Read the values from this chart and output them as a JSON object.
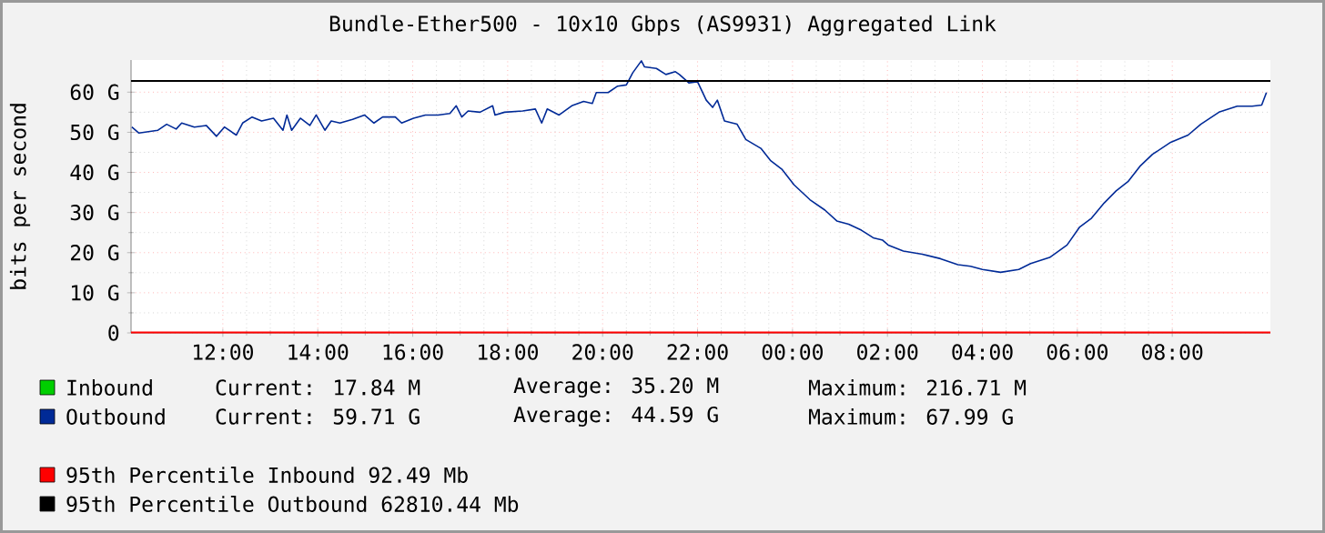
{
  "chart_data": {
    "type": "line",
    "title": "Bundle-Ether500 - 10x10 Gbps (AS9931) Aggregated Link",
    "ylabel": "bits per second",
    "xlim": [
      "2000-01-01T10:04",
      "2000-01-02T10:04"
    ],
    "ylim": [
      0,
      68
    ],
    "xticks": [
      {
        "value": "2000-01-01T12:00",
        "label": "12:00"
      },
      {
        "value": "2000-01-01T14:00",
        "label": "14:00"
      },
      {
        "value": "2000-01-01T16:00",
        "label": "16:00"
      },
      {
        "value": "2000-01-01T18:00",
        "label": "18:00"
      },
      {
        "value": "2000-01-01T20:00",
        "label": "20:00"
      },
      {
        "value": "2000-01-01T22:00",
        "label": "22:00"
      },
      {
        "value": "2000-01-02T00:00",
        "label": "00:00"
      },
      {
        "value": "2000-01-02T02:00",
        "label": "02:00"
      },
      {
        "value": "2000-01-02T04:00",
        "label": "04:00"
      },
      {
        "value": "2000-01-02T06:00",
        "label": "06:00"
      },
      {
        "value": "2000-01-02T08:00",
        "label": "08:00"
      }
    ],
    "yticks": [
      0,
      {
        "value": 10,
        "label": "10 G"
      },
      {
        "value": 20,
        "label": "20 G"
      },
      {
        "value": 30,
        "label": "30 G"
      },
      {
        "value": 40,
        "label": "40 G"
      },
      {
        "value": 50,
        "label": "50 G"
      },
      {
        "value": 60,
        "label": "60 G"
      }
    ],
    "grid": true,
    "legend": "bottom",
    "marker": "none",
    "line_style": "solid",
    "series": [
      {
        "name": "Inbound",
        "color": "#00cf00",
        "values": [
          null,
          null
        ]
      },
      {
        "name": "Outbound",
        "color": "#002a97",
        "x": [
          "2000-01-01T10:05",
          "2000-01-01T10:14",
          "2000-01-01T10:38",
          "2000-01-01T10:49",
          "2000-01-01T11:01",
          "2000-01-01T11:08",
          "2000-01-01T11:24",
          "2000-01-01T11:39",
          "2000-01-01T11:52",
          "2000-01-01T12:02",
          "2000-01-01T12:17",
          "2000-01-01T12:25",
          "2000-01-01T12:37",
          "2000-01-01T12:49",
          "2000-01-01T13:04",
          "2000-01-01T13:16",
          "2000-01-01T13:21",
          "2000-01-01T13:27",
          "2000-01-01T13:38",
          "2000-01-01T13:50",
          "2000-01-01T13:58",
          "2000-01-01T14:09",
          "2000-01-01T14:17",
          "2000-01-01T14:28",
          "2000-01-01T14:44",
          "2000-01-01T14:59",
          "2000-01-01T15:11",
          "2000-01-01T15:22",
          "2000-01-01T15:38",
          "2000-01-01T15:46",
          "2000-01-01T16:01",
          "2000-01-01T16:16",
          "2000-01-01T16:32",
          "2000-01-01T16:47",
          "2000-01-01T16:55",
          "2000-01-01T17:02",
          "2000-01-01T17:10",
          "2000-01-01T17:25",
          "2000-01-01T17:41",
          "2000-01-01T17:44",
          "2000-01-01T17:56",
          "2000-01-01T18:19",
          "2000-01-01T18:35",
          "2000-01-01T18:43",
          "2000-01-01T18:50",
          "2000-01-01T19:05",
          "2000-01-01T19:21",
          "2000-01-01T19:36",
          "2000-01-01T19:47",
          "2000-01-01T19:52",
          "2000-01-01T20:07",
          "2000-01-01T20:19",
          "2000-01-01T20:30",
          "2000-01-01T20:38",
          "2000-01-01T20:49",
          "2000-01-01T20:53",
          "2000-01-01T21:08",
          "2000-01-01T21:20",
          "2000-01-01T21:32",
          "2000-01-01T21:37",
          "2000-01-01T21:49",
          "2000-01-01T22:00",
          "2000-01-01T22:11",
          "2000-01-01T22:19",
          "2000-01-01T22:25",
          "2000-01-01T22:34",
          "2000-01-01T22:50",
          "2000-01-01T23:01",
          "2000-01-01T23:20",
          "2000-01-01T23:32",
          "2000-01-01T23:47",
          "2000-01-02T00:02",
          "2000-01-02T00:22",
          "2000-01-02T00:41",
          "2000-01-02T00:56",
          "2000-01-02T01:11",
          "2000-01-02T01:27",
          "2000-01-02T01:42",
          "2000-01-02T01:54",
          "2000-01-02T02:01",
          "2000-01-02T02:20",
          "2000-01-02T02:44",
          "2000-01-02T03:07",
          "2000-01-02T03:29",
          "2000-01-02T03:45",
          "2000-01-02T04:00",
          "2000-01-02T04:23",
          "2000-01-02T04:46",
          "2000-01-02T05:01",
          "2000-01-02T05:25",
          "2000-01-02T05:47",
          "2000-01-02T06:03",
          "2000-01-02T06:18",
          "2000-01-02T06:34",
          "2000-01-02T06:49",
          "2000-01-02T07:04",
          "2000-01-02T07:19",
          "2000-01-02T07:35",
          "2000-01-02T07:58",
          "2000-01-02T08:20",
          "2000-01-02T08:36",
          "2000-01-02T08:59",
          "2000-01-02T09:22",
          "2000-01-02T09:41",
          "2000-01-02T09:53",
          "2000-01-02T09:59"
        ],
        "values": [
          51.3,
          49.8,
          50.5,
          52.0,
          50.8,
          52.3,
          51.3,
          51.7,
          49.0,
          51.3,
          49.3,
          52.3,
          53.8,
          52.8,
          53.5,
          50.5,
          54.3,
          50.5,
          53.5,
          51.7,
          54.3,
          50.5,
          52.8,
          52.3,
          53.2,
          54.3,
          52.3,
          53.8,
          53.8,
          52.3,
          53.5,
          54.3,
          54.3,
          54.7,
          56.6,
          53.8,
          55.3,
          55.0,
          56.6,
          54.3,
          55.0,
          55.3,
          55.8,
          52.3,
          55.8,
          54.3,
          56.6,
          57.7,
          57.2,
          59.9,
          59.9,
          61.5,
          61.8,
          64.8,
          67.8,
          66.3,
          65.9,
          64.4,
          65.1,
          64.4,
          62.3,
          62.6,
          58.0,
          56.2,
          58.0,
          52.8,
          52.0,
          48.2,
          46.0,
          43.0,
          40.7,
          36.9,
          33.2,
          30.6,
          27.9,
          27.1,
          25.6,
          23.7,
          23.1,
          21.9,
          20.4,
          19.6,
          18.5,
          17.0,
          16.6,
          15.8,
          15.1,
          15.8,
          17.3,
          18.8,
          21.9,
          26.4,
          28.6,
          32.4,
          35.4,
          37.7,
          41.5,
          44.5,
          47.5,
          49.3,
          52.0,
          55.0,
          56.5,
          56.5,
          56.8,
          59.9
        ]
      }
    ],
    "ref_lines": [
      {
        "axis": "y",
        "value": 0.09249,
        "label": "95th Percentile Inbound 92.49 Mb",
        "color": "#ff0000"
      },
      {
        "axis": "y",
        "value": 62.81044,
        "label": "95th Percentile Outbound 62810.44 Mb",
        "color": "#000000"
      }
    ],
    "annotations": [
      "Current: 17.84 M",
      "Average: 35.20 M",
      "Maximum: 216.71 M",
      "Current: 59.71 G",
      "Average: 44.59 G",
      "Maximum: 67.99 G"
    ]
  }
}
